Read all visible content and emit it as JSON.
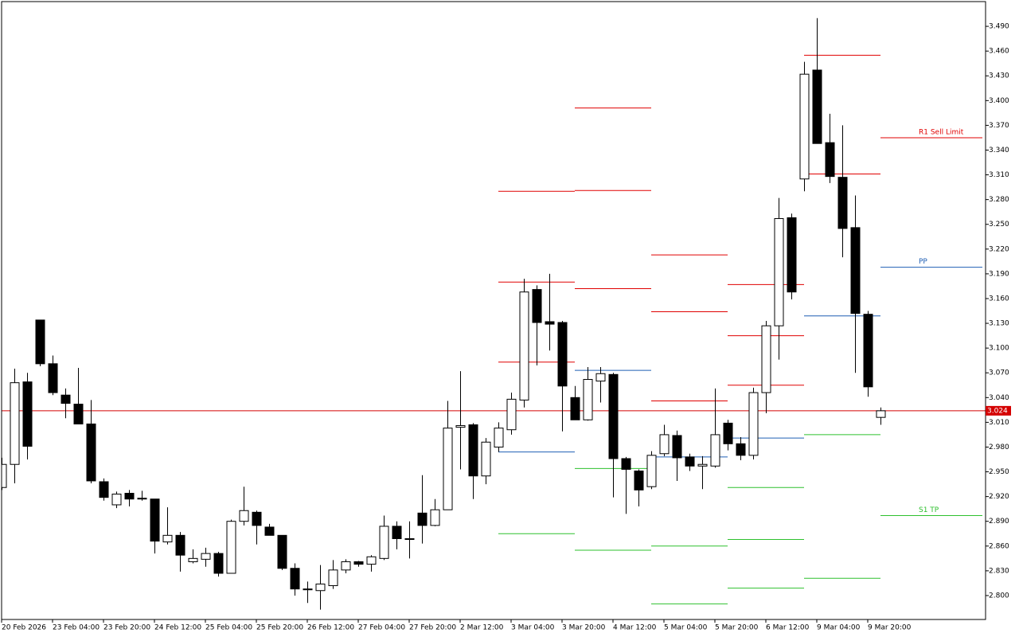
{
  "chart_data": {
    "type": "candlestick",
    "categories": [
      "20 Feb 2026",
      null,
      null,
      null,
      "23 Feb 04:00",
      null,
      null,
      null,
      "23 Feb 20:00",
      null,
      null,
      null,
      "24 Feb 12:00",
      null,
      null,
      null,
      "25 Feb 04:00",
      null,
      null,
      null,
      "25 Feb 20:00",
      null,
      null,
      null,
      "26 Feb 12:00",
      null,
      null,
      null,
      "27 Feb 04:00",
      null,
      null,
      null,
      "27 Feb 20:00",
      null,
      null,
      null,
      "2 Mar 12:00",
      null,
      null,
      null,
      "3 Mar 04:00",
      null,
      null,
      null,
      "3 Mar 20:00",
      null,
      null,
      null,
      "4 Mar 12:00",
      null,
      null,
      null,
      "5 Mar 04:00",
      null,
      null,
      null,
      "5 Mar 20:00",
      null,
      null,
      null,
      "6 Mar 12:00",
      null,
      null,
      null,
      "9 Mar 04:00",
      null,
      null,
      null,
      "9 Mar 20:00",
      null
    ],
    "open": [
      2.931,
      2.959,
      3.059,
      3.134,
      3.081,
      3.043,
      3.032,
      3.008,
      2.938,
      2.91,
      2.924,
      2.917,
      2.917,
      2.865,
      2.873,
      2.841,
      2.844,
      2.851,
      2.827,
      2.89,
      2.901,
      2.883,
      2.873,
      2.833,
      2.807,
      2.806,
      2.812,
      2.831,
      2.841,
      2.838,
      2.845,
      2.884,
      2.868,
      2.9,
      2.885,
      2.904,
      3.004,
      3.007,
      2.945,
      2.98,
      3.001,
      3.037,
      3.171,
      3.132,
      3.131,
      3.04,
      3.013,
      3.06,
      3.068,
      2.966,
      2.951,
      2.932,
      2.972,
      2.994,
      2.968,
      2.957,
      2.957,
      3.009,
      2.984,
      2.97,
      3.046,
      3.127,
      3.258,
      3.305,
      3.437,
      3.349,
      3.307,
      3.246,
      3.141,
      3.016
    ],
    "high": [
      2.967,
      3.075,
      3.07,
      3.134,
      3.091,
      3.051,
      3.076,
      3.037,
      2.942,
      2.926,
      2.928,
      2.927,
      2.917,
      2.907,
      2.877,
      2.856,
      2.858,
      2.853,
      2.892,
      2.932,
      2.903,
      2.887,
      2.873,
      2.839,
      2.817,
      2.837,
      2.843,
      2.844,
      2.842,
      2.849,
      2.897,
      2.89,
      2.89,
      2.946,
      2.917,
      3.036,
      3.072,
      3.009,
      2.991,
      3.01,
      3.046,
      3.184,
      3.176,
      3.19,
      3.133,
      3.054,
      3.077,
      3.077,
      3.07,
      2.968,
      2.953,
      2.975,
      3.007,
      3.0,
      2.972,
      2.969,
      3.051,
      3.013,
      2.992,
      3.052,
      3.133,
      3.282,
      3.263,
      3.447,
      3.5,
      3.384,
      3.37,
      3.285,
      3.145,
      3.028
    ],
    "low": [
      2.928,
      2.936,
      2.965,
      3.078,
      3.043,
      3.015,
      3.008,
      2.936,
      2.915,
      2.906,
      2.908,
      2.915,
      2.851,
      2.862,
      2.829,
      2.839,
      2.835,
      2.823,
      2.827,
      2.885,
      2.862,
      2.873,
      2.831,
      2.8,
      2.791,
      2.783,
      2.808,
      2.827,
      2.835,
      2.829,
      2.843,
      2.856,
      2.845,
      2.863,
      2.884,
      2.904,
      2.953,
      2.917,
      2.935,
      2.974,
      2.995,
      3.028,
      3.079,
      3.097,
      2.999,
      3.013,
      3.012,
      3.034,
      2.919,
      2.899,
      2.908,
      2.929,
      2.969,
      2.939,
      2.951,
      2.929,
      2.955,
      2.976,
      2.964,
      2.965,
      3.021,
      3.086,
      3.159,
      3.29,
      3.348,
      3.3,
      3.21,
      3.07,
      3.041,
      3.007
    ],
    "close": [
      2.959,
      3.058,
      2.981,
      3.081,
      3.046,
      3.033,
      3.008,
      2.939,
      2.919,
      2.923,
      2.917,
      2.918,
      2.866,
      2.873,
      2.849,
      2.845,
      2.851,
      2.827,
      2.89,
      2.903,
      2.885,
      2.873,
      2.833,
      2.808,
      2.808,
      2.814,
      2.831,
      2.841,
      2.838,
      2.847,
      2.884,
      2.869,
      2.869,
      2.885,
      2.904,
      3.003,
      3.006,
      2.945,
      2.986,
      3.003,
      3.038,
      3.168,
      3.131,
      3.129,
      3.054,
      3.013,
      3.062,
      3.069,
      2.966,
      2.953,
      2.928,
      2.97,
      2.995,
      2.967,
      2.957,
      2.959,
      2.995,
      2.984,
      2.97,
      3.046,
      3.127,
      3.257,
      3.168,
      3.432,
      3.348,
      3.308,
      3.245,
      3.142,
      3.053,
      3.024
    ],
    "up_color": "#ffffff",
    "down_color": "#000000",
    "wick_color": "#000000",
    "current_price": 3.024,
    "current_price_color": "#d40000",
    "resistance_color": "#e00000",
    "pivot_color": "#1f5fb4",
    "support_color": "#2ec02e",
    "pivot_days": [
      {
        "resistance": [
          3.29,
          3.18,
          3.083
        ],
        "pivot": 2.974,
        "support": [
          2.875
        ]
      },
      {
        "resistance": [
          3.391,
          3.291,
          3.172
        ],
        "pivot": 3.073,
        "support": [
          2.954,
          2.855
        ]
      },
      {
        "resistance": [
          3.213,
          3.144,
          3.036
        ],
        "pivot": 2.968,
        "support": [
          2.86,
          2.79
        ]
      },
      {
        "resistance": [
          3.177,
          3.115,
          3.055
        ],
        "pivot": 2.991,
        "support": [
          2.931,
          2.868,
          2.809
        ]
      },
      {
        "resistance": [
          3.455,
          3.311
        ],
        "pivot": 3.139,
        "support": [
          2.995,
          2.821
        ]
      },
      {
        "resistance": [
          {
            "value": 3.355,
            "label": "R1 Sell Limit"
          }
        ],
        "pivot": {
          "value": 3.198,
          "label": "PP"
        },
        "support": [
          {
            "value": 2.897,
            "label": "S1 TP"
          }
        ]
      }
    ],
    "ylim": [
      2.771,
      3.52
    ],
    "yticks": [
      {
        "value": 2.8,
        "label": "2.800"
      },
      {
        "value": 2.83,
        "label": "2.830"
      },
      {
        "value": 2.86,
        "label": "2.860"
      },
      {
        "value": 2.89,
        "label": "2.890"
      },
      {
        "value": 2.92,
        "label": "2.920"
      },
      {
        "value": 2.95,
        "label": "2.950"
      },
      {
        "value": 2.98,
        "label": "2.980"
      },
      {
        "value": 3.01,
        "label": "3.010"
      },
      {
        "value": 3.04,
        "label": "3.040"
      },
      {
        "value": 3.07,
        "label": "3.070"
      },
      {
        "value": 3.1,
        "label": "3.100"
      },
      {
        "value": 3.13,
        "label": "3.130"
      },
      {
        "value": 3.16,
        "label": "3.160"
      },
      {
        "value": 3.19,
        "label": "3.190"
      },
      {
        "value": 3.22,
        "label": "3.220"
      },
      {
        "value": 3.25,
        "label": "3.250"
      },
      {
        "value": 3.28,
        "label": "3.280"
      },
      {
        "value": 3.31,
        "label": "3.310"
      },
      {
        "value": 3.34,
        "label": "3.340"
      },
      {
        "value": 3.37,
        "label": "3.370"
      },
      {
        "value": 3.4,
        "label": "3.400"
      },
      {
        "value": 3.43,
        "label": "3.430"
      },
      {
        "value": 3.46,
        "label": "3.460"
      },
      {
        "value": 3.49,
        "label": "3.490"
      }
    ],
    "grid": false
  }
}
